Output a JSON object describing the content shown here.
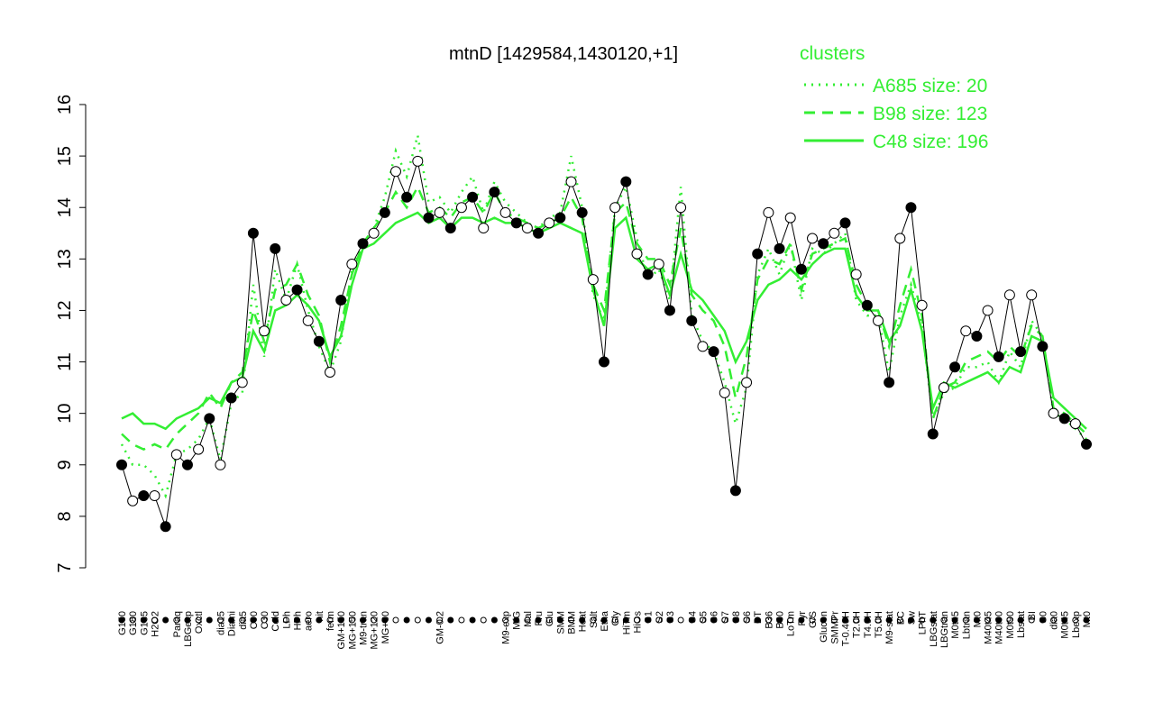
{
  "chart_data": {
    "type": "line",
    "title": "mtnD [1429584,1430120,+1]",
    "legend_title": "clusters",
    "legend_color": "#33ee33",
    "categories": [
      "G150",
      "G180",
      "G135",
      "H2O2",
      null,
      "Paraq",
      "LBGexp",
      "Oxctl",
      null,
      "dia15",
      "Diami",
      "dia5",
      "C90",
      "C30",
      "Cold",
      "LPh",
      "HPh",
      "aero",
      "nit",
      "ferm",
      "GM+150",
      "MG+150",
      "M9-tran",
      "MG+120",
      "MG+60",
      null,
      null,
      null,
      null,
      "GM-0.2",
      null,
      null,
      null,
      null,
      null,
      "M9-exp",
      "M/G",
      "Mal",
      "Fru",
      "Glu",
      "SMM",
      "BMM",
      "Heat",
      "Salt",
      "Etha",
      "Gly",
      "HiTm",
      "HiOs",
      "S1",
      "S2",
      "S3",
      null,
      "S4",
      "S5",
      "S6",
      "S7",
      "S8",
      "S6",
      "BT",
      "B36",
      "B60",
      "LoTm",
      "Pyr",
      "G/S",
      "Glucon",
      "SMMPr",
      "T-0.40H",
      "T2.0H",
      "T4.0H",
      "T5.0H",
      "M9-stat",
      "BC",
      "Sw",
      "LPhT",
      "LBGstat",
      "LBGtran",
      "M0t45",
      "Lbtran",
      "Mt0",
      "M40t45",
      "M40t90",
      "M0t90",
      "Lbstat",
      "BI",
      "S0",
      "dia0",
      "M0t45",
      "Lbexp",
      "Mt0"
    ],
    "values": [
      9.0,
      8.3,
      8.4,
      8.4,
      7.8,
      9.2,
      9.0,
      9.3,
      9.9,
      9.0,
      10.3,
      10.6,
      13.5,
      11.6,
      13.2,
      12.2,
      12.4,
      11.8,
      11.4,
      10.8,
      12.2,
      12.9,
      13.3,
      13.5,
      13.9,
      14.7,
      14.2,
      14.9,
      13.8,
      13.9,
      13.6,
      14.0,
      14.2,
      13.6,
      14.3,
      13.9,
      13.7,
      13.6,
      13.5,
      13.7,
      13.8,
      14.5,
      13.9,
      12.6,
      11.0,
      14.0,
      14.5,
      13.1,
      12.7,
      12.9,
      12.0,
      14.0,
      11.8,
      11.3,
      11.2,
      10.4,
      8.5,
      10.6,
      13.1,
      13.9,
      13.2,
      13.8,
      12.8,
      13.4,
      13.3,
      13.5,
      13.7,
      12.7,
      12.1,
      11.8,
      10.6,
      13.4,
      14.0,
      12.1,
      9.6,
      10.5,
      10.9,
      11.6,
      11.5,
      12.0,
      11.1,
      12.3,
      11.2,
      12.3,
      11.3,
      10.0,
      9.9,
      9.8,
      9.4
    ],
    "color": "#000000",
    "series": [
      {
        "name": "A685 size: 20",
        "color": "#33ee33",
        "style": "dotted",
        "values": [
          9.4,
          9.0,
          9.0,
          8.8,
          8.4,
          9.2,
          9.3,
          9.5,
          9.9,
          9.1,
          10.2,
          10.4,
          12.5,
          11.1,
          12.8,
          12.2,
          12.9,
          12.0,
          11.3,
          10.8,
          11.4,
          12.8,
          13.3,
          13.6,
          14.2,
          15.1,
          14.6,
          15.4,
          14.1,
          14.2,
          13.9,
          14.3,
          14.6,
          13.9,
          14.5,
          14.1,
          13.9,
          13.7,
          13.6,
          13.8,
          13.9,
          15.0,
          14.0,
          12.3,
          11.8,
          14.0,
          14.4,
          13.4,
          12.6,
          12.8,
          12.2,
          14.4,
          11.9,
          11.4,
          11.2,
          10.6,
          9.8,
          10.5,
          12.7,
          13.2,
          12.7,
          13.3,
          12.2,
          13.2,
          13.1,
          13.3,
          13.5,
          12.2,
          11.9,
          11.9,
          10.8,
          11.9,
          12.5,
          11.7,
          9.9,
          10.4,
          10.5,
          10.9,
          10.9,
          11.0,
          10.6,
          11.2,
          10.9,
          11.8,
          11.5,
          10.0,
          9.9,
          9.7,
          9.5
        ]
      },
      {
        "name": "B98 size: 123",
        "color": "#33ee33",
        "style": "dashed",
        "values": [
          9.6,
          9.4,
          9.3,
          9.4,
          9.3,
          9.6,
          9.8,
          10.0,
          10.4,
          10.1,
          10.6,
          10.8,
          12.0,
          11.4,
          12.4,
          12.5,
          12.9,
          12.3,
          11.9,
          11.0,
          11.7,
          12.7,
          13.3,
          13.6,
          13.9,
          14.3,
          14.0,
          14.4,
          13.9,
          14.0,
          13.8,
          14.1,
          14.2,
          13.9,
          14.3,
          13.9,
          13.8,
          13.7,
          13.6,
          13.7,
          13.8,
          14.2,
          13.8,
          12.5,
          12.0,
          13.9,
          14.1,
          13.3,
          13.0,
          13.0,
          12.5,
          13.6,
          12.3,
          12.0,
          11.8,
          11.3,
          10.3,
          11.1,
          12.6,
          13.0,
          12.9,
          13.3,
          12.4,
          13.1,
          13.2,
          13.3,
          13.4,
          12.5,
          12.1,
          12.0,
          11.3,
          12.1,
          12.8,
          11.9,
          9.9,
          10.5,
          10.6,
          11.0,
          11.1,
          11.2,
          11.0,
          11.3,
          11.1,
          11.7,
          11.5,
          10.1,
          10.0,
          9.8,
          9.6
        ]
      },
      {
        "name": "C48 size: 196",
        "color": "#33ee33",
        "style": "solid",
        "values": [
          9.9,
          10.0,
          9.8,
          9.8,
          9.7,
          9.9,
          10.0,
          10.1,
          10.3,
          10.2,
          10.6,
          10.7,
          11.6,
          11.2,
          12.0,
          12.1,
          12.3,
          12.1,
          11.8,
          11.1,
          11.5,
          12.5,
          13.2,
          13.3,
          13.5,
          13.7,
          13.8,
          13.9,
          13.7,
          13.8,
          13.6,
          13.8,
          13.8,
          13.7,
          13.8,
          13.7,
          13.7,
          13.6,
          13.5,
          13.6,
          13.7,
          13.6,
          13.5,
          12.4,
          11.7,
          13.6,
          13.8,
          13.0,
          12.8,
          12.9,
          12.3,
          13.1,
          12.4,
          12.2,
          11.9,
          11.6,
          11.0,
          11.4,
          12.2,
          12.5,
          12.6,
          12.8,
          12.6,
          12.9,
          13.1,
          13.2,
          13.2,
          12.3,
          12.0,
          12.0,
          11.4,
          11.7,
          12.4,
          11.6,
          10.1,
          10.6,
          10.5,
          10.6,
          10.7,
          10.8,
          10.6,
          10.9,
          10.8,
          11.5,
          11.4,
          10.3,
          10.1,
          9.9,
          9.7
        ]
      }
    ],
    "ylim": [
      7,
      16
    ],
    "yticks": [
      7,
      8,
      9,
      10,
      11,
      12,
      13,
      14,
      15,
      16
    ],
    "legend_position": "top-right"
  }
}
